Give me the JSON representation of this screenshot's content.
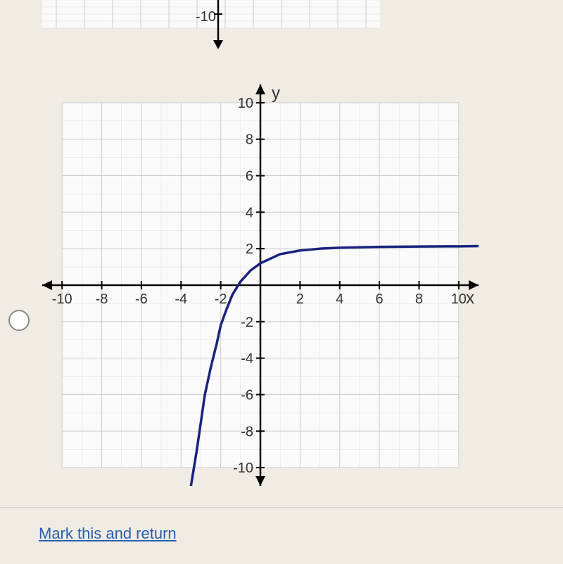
{
  "top_partial_chart": {
    "type": "grid_fragment",
    "y_label_visible": "-10",
    "label_fontsize": 20,
    "label_color": "#333333",
    "grid_color": "#cccccc",
    "background_color": "#fafafa",
    "axis_color": "#000000"
  },
  "main_chart": {
    "type": "line",
    "title": "",
    "x_axis_label": "x",
    "y_axis_label": "y",
    "axis_label_fontsize": 24,
    "axis_label_color": "#333333",
    "xlim": [
      -11,
      11
    ],
    "ylim": [
      -11,
      11
    ],
    "x_ticks": [
      -10,
      -8,
      -6,
      -4,
      -2,
      2,
      4,
      6,
      8,
      10
    ],
    "y_ticks": [
      -10,
      -8,
      -6,
      -4,
      -2,
      2,
      4,
      6,
      8,
      10
    ],
    "x_tick_labels": [
      "-10",
      "-8",
      "-6",
      "-4",
      "-2",
      "2",
      "4",
      "6",
      "8",
      "10"
    ],
    "y_tick_labels": [
      "-10",
      "-8",
      "-6",
      "-4",
      "-2",
      "2",
      "4",
      "6",
      "8",
      "10"
    ],
    "tick_fontsize": 20,
    "tick_color": "#333333",
    "grid_color": "#cccccc",
    "minor_grid": true,
    "axis_color": "#000000",
    "background_color": "#fafafa",
    "series": [
      {
        "name": "log_curve",
        "color": "#1a237e",
        "line_width": 3.5,
        "points": [
          [
            -3.5,
            -11
          ],
          [
            -3.2,
            -9
          ],
          [
            -3.0,
            -7.5
          ],
          [
            -2.8,
            -6
          ],
          [
            -2.5,
            -4.5
          ],
          [
            -2.2,
            -3.2
          ],
          [
            -2.0,
            -2.2
          ],
          [
            -1.7,
            -1.3
          ],
          [
            -1.4,
            -0.5
          ],
          [
            -1.0,
            0.2
          ],
          [
            -0.5,
            0.8
          ],
          [
            0,
            1.2
          ],
          [
            1,
            1.7
          ],
          [
            2,
            1.9
          ],
          [
            3,
            2.0
          ],
          [
            4,
            2.05
          ],
          [
            6,
            2.1
          ],
          [
            8,
            2.12
          ],
          [
            10,
            2.13
          ],
          [
            11,
            2.14
          ]
        ]
      }
    ],
    "arrows": {
      "x_positive": true,
      "x_negative": true,
      "y_positive": true,
      "y_negative": true
    }
  },
  "radio": {
    "selected": false,
    "border_color": "#888888"
  },
  "link": {
    "text": "Mark this and return",
    "color": "#2a5db0"
  }
}
